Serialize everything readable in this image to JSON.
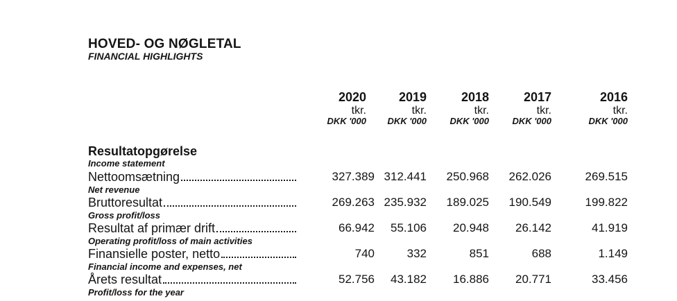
{
  "header": {
    "title": "HOVED- OG NØGLETAL",
    "subtitle": "FINANCIAL HIGHLIGHTS"
  },
  "table": {
    "columns": [
      {
        "year": "2020",
        "unit": "tkr.",
        "unit_en": "DKK '000"
      },
      {
        "year": "2019",
        "unit": "tkr.",
        "unit_en": "DKK '000"
      },
      {
        "year": "2018",
        "unit": "tkr.",
        "unit_en": "DKK '000"
      },
      {
        "year": "2017",
        "unit": "tkr.",
        "unit_en": "DKK '000"
      },
      {
        "year": "2016",
        "unit": "tkr.",
        "unit_en": "DKK '000"
      }
    ],
    "section": {
      "title": "Resultatopgørelse",
      "subtitle": "Income statement"
    },
    "rows": [
      {
        "label": "Nettoomsætning",
        "label_en": "Net revenue",
        "values": [
          "327.389",
          "312.441",
          "250.968",
          "262.026",
          "269.515"
        ]
      },
      {
        "label": "Bruttoresultat",
        "label_en": "Gross profit/loss",
        "values": [
          "269.263",
          "235.932",
          "189.025",
          "190.549",
          "199.822"
        ]
      },
      {
        "label": "Resultat af primær drift",
        "label_en": "Operating profit/loss of main activities",
        "values": [
          "66.942",
          "55.106",
          "20.948",
          "26.142",
          "41.919"
        ]
      },
      {
        "label": "Finansielle poster, netto",
        "label_en": "Financial income and expenses, net",
        "values": [
          "740",
          "332",
          "851",
          "688",
          "1.149"
        ]
      },
      {
        "label": "Årets resultat",
        "label_en": "Profit/loss for the year",
        "values": [
          "52.756",
          "43.182",
          "16.886",
          "20.771",
          "33.456"
        ]
      }
    ]
  },
  "colors": {
    "text": "#141414",
    "background": "#ffffff"
  }
}
